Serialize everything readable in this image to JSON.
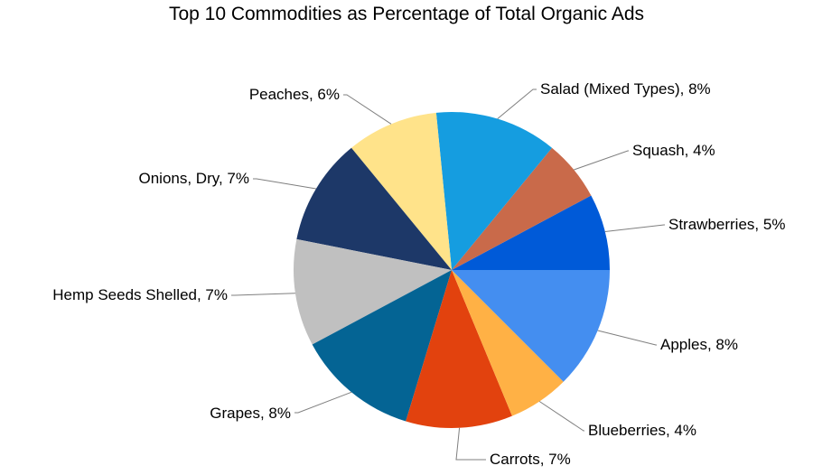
{
  "chart_data": {
    "type": "pie",
    "title": "Top 10 Commodities as Percentage of Total Organic Ads",
    "slices": [
      {
        "label": "Strawberries",
        "value": 5,
        "color": "#005ad8",
        "label_text": "Strawberries, 5%"
      },
      {
        "label": "Squash",
        "value": 4,
        "color": "#c96a4a",
        "label_text": "Squash, 4%"
      },
      {
        "label": "Salad (Mixed Types)",
        "value": 8,
        "color": "#159de0",
        "label_text": "Salad (Mixed Types), 8%"
      },
      {
        "label": "Peaches",
        "value": 6,
        "color": "#ffe38a",
        "label_text": "Peaches, 6%"
      },
      {
        "label": "Onions, Dry",
        "value": 7,
        "color": "#1d3868",
        "label_text": "Onions, Dry, 7%"
      },
      {
        "label": "Hemp Seeds Shelled",
        "value": 7,
        "color": "#c0c0c0",
        "label_text": "Hemp Seeds Shelled, 7%"
      },
      {
        "label": "Grapes",
        "value": 8,
        "color": "#046494",
        "label_text": "Grapes, 8%"
      },
      {
        "label": "Carrots",
        "value": 7,
        "color": "#e2420e",
        "label_text": "Carrots, 7%"
      },
      {
        "label": "Blueberries",
        "value": 4,
        "color": "#ffb145",
        "label_text": "Blueberries, 4%"
      },
      {
        "label": "Apples",
        "value": 8,
        "color": "#448ef0",
        "label_text": "Apples, 8%"
      }
    ]
  }
}
